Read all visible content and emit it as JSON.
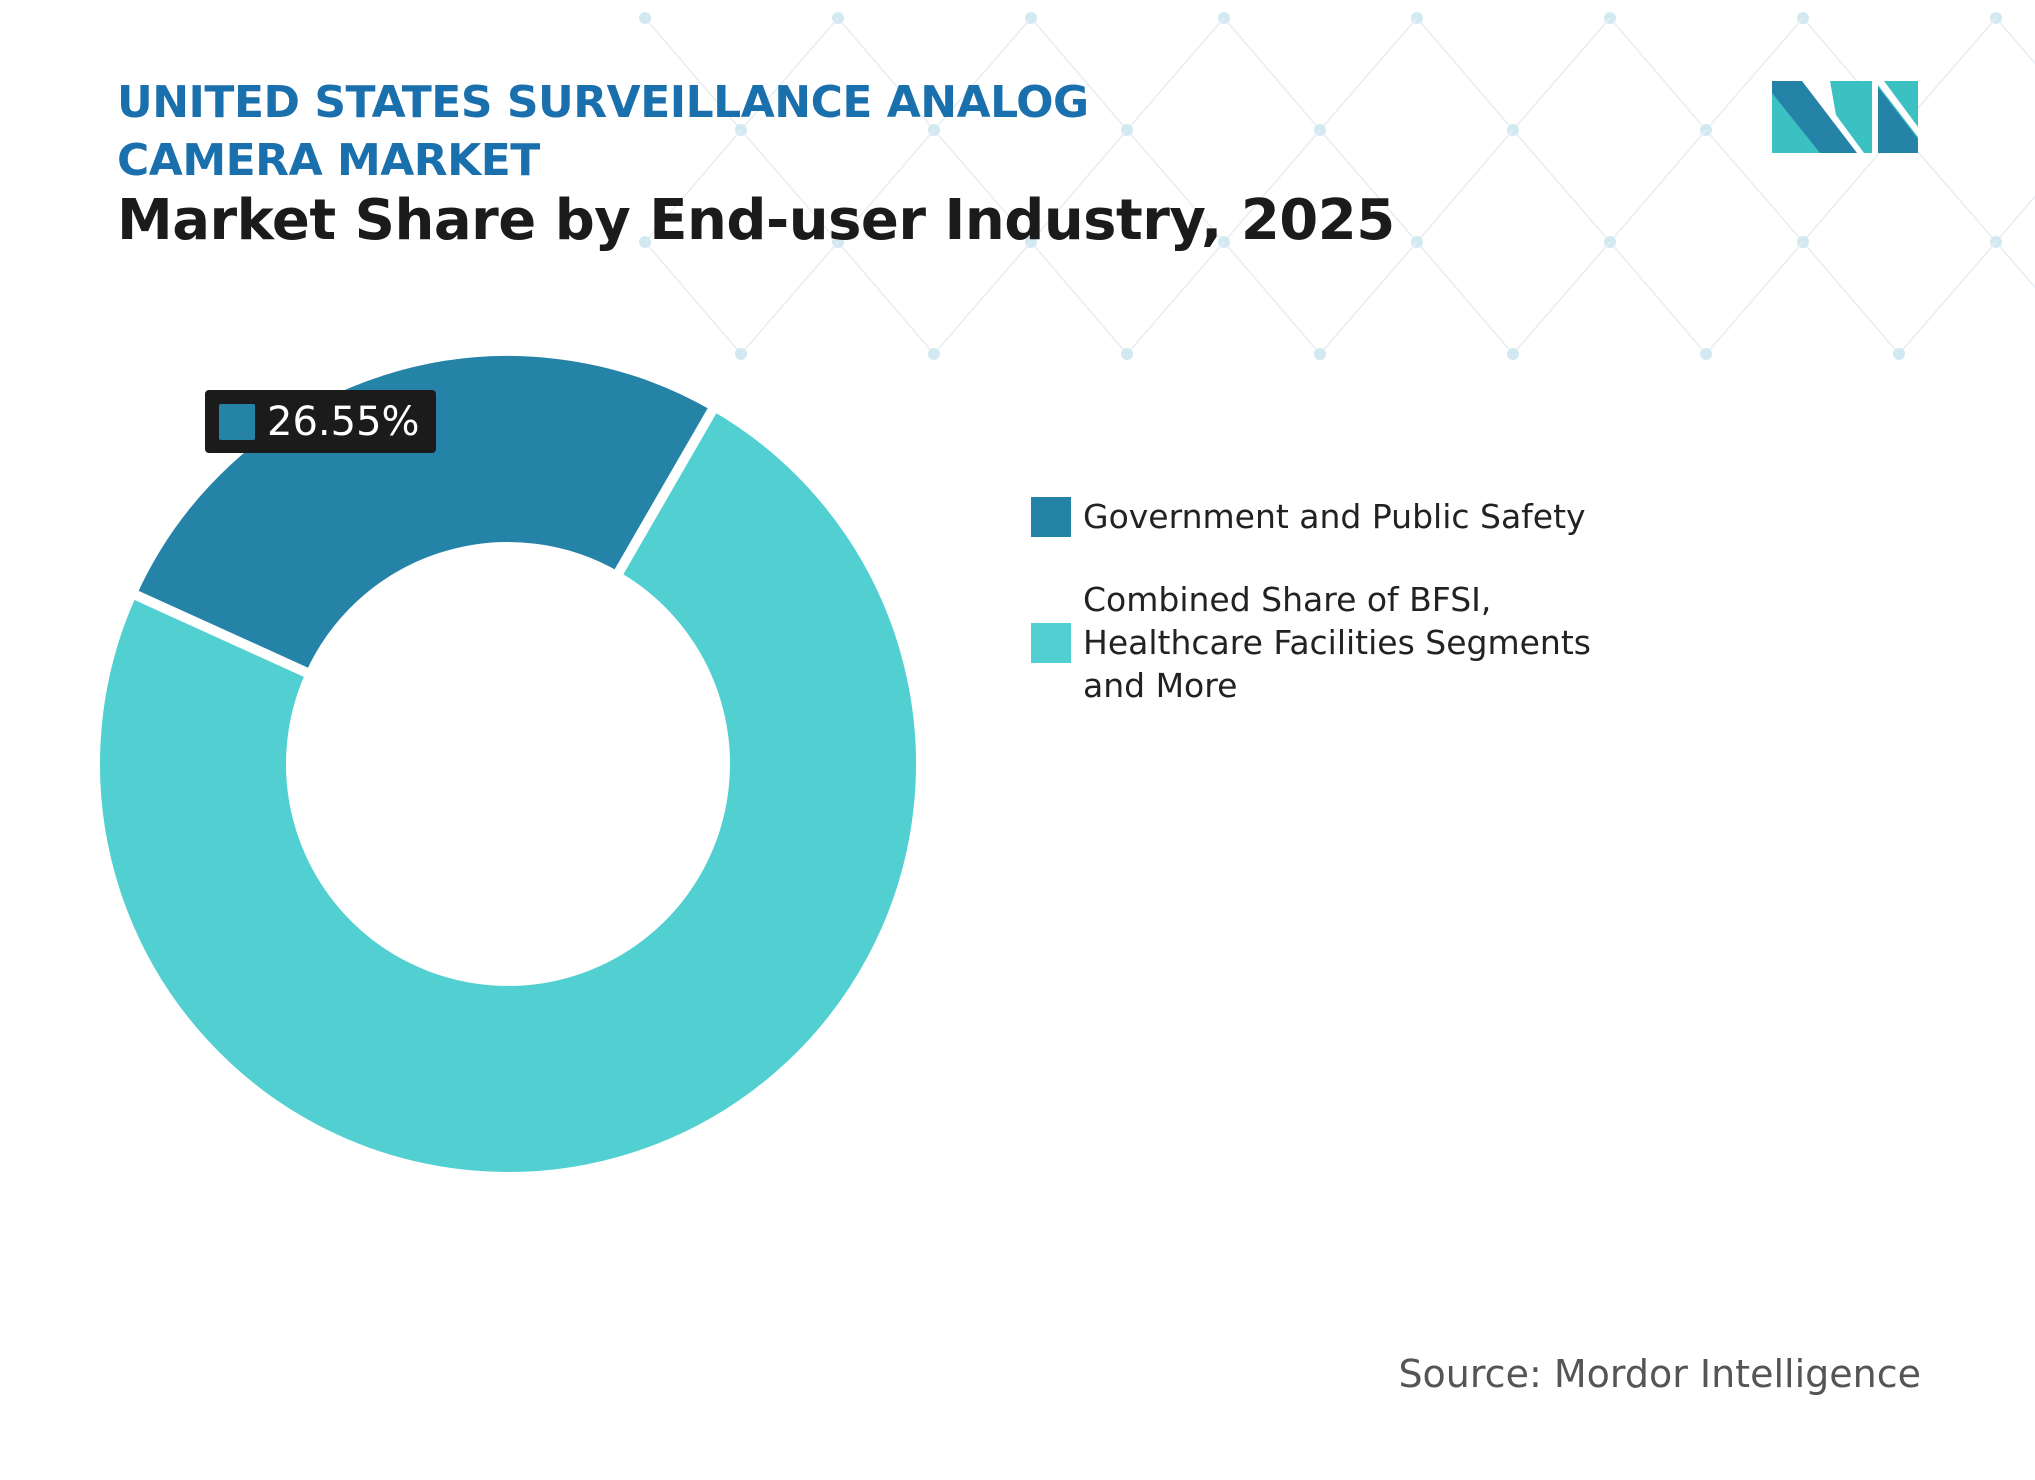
{
  "header": {
    "title": "UNITED STATES SURVEILLANCE ANALOG CAMERA MARKET",
    "subtitle": "Market Share by End-user Industry, 2025"
  },
  "chart_data": {
    "type": "pie",
    "variant": "donut",
    "title": "Market Share by End-user Industry, 2025",
    "series": [
      {
        "name": "Government and Public Safety",
        "value": 26.55,
        "color": "#2683a8"
      },
      {
        "name": "Combined Share of BFSI, Healthcare Facilities Segments and More",
        "value": 73.45,
        "color": "#52d0d1"
      }
    ],
    "data_labels": [
      "26.55%"
    ],
    "legend_position": "right"
  },
  "source": "Source: Mordor Intelligence",
  "logo": {
    "text": "MI",
    "colors": [
      "#2683a8",
      "#3cc1c3"
    ]
  }
}
